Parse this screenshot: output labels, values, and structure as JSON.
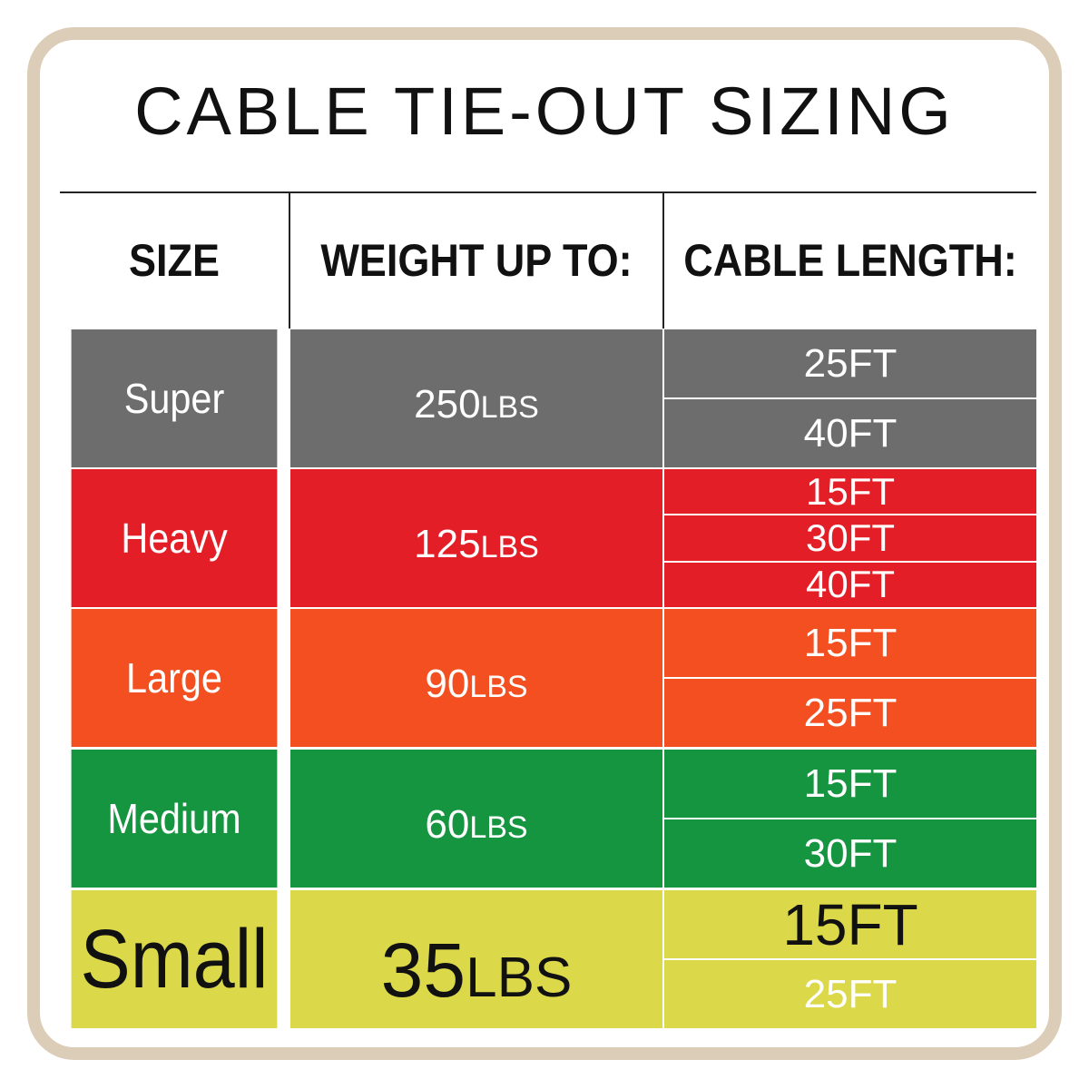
{
  "title": "CABLE TIE-OUT SIZING",
  "headers": {
    "size": "SIZE",
    "weight": "WEIGHT UP TO:",
    "length": "CABLE LENGTH:"
  },
  "rows": [
    {
      "size": "Super",
      "weight": "250",
      "unit": "LBS",
      "lengths": [
        "25FT",
        "40FT"
      ],
      "color": "#6d6d6d"
    },
    {
      "size": "Heavy",
      "weight": "125",
      "unit": "LBS",
      "lengths": [
        "15FT",
        "30FT",
        "40FT"
      ],
      "color": "#e31e26"
    },
    {
      "size": "Large",
      "weight": "90",
      "unit": "LBS",
      "lengths": [
        "15FT",
        "25FT"
      ],
      "color": "#f44f20"
    },
    {
      "size": "Medium",
      "weight": "60",
      "unit": "LBS",
      "lengths": [
        "15FT",
        "30FT"
      ],
      "color": "#169540"
    },
    {
      "size": "Small",
      "weight": "35",
      "unit": "LBS",
      "lengths": [
        "15FT",
        "25FT"
      ],
      "color": "#dbd84a"
    }
  ],
  "frame_color": "#dccdb8"
}
